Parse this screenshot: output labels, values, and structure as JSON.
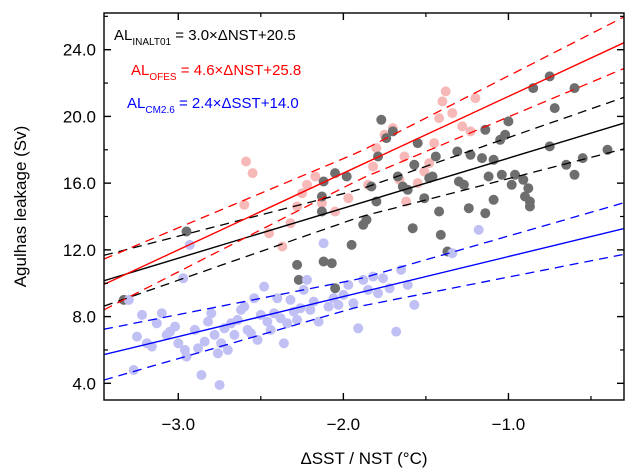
{
  "chart_data": {
    "type": "scatter",
    "xlabel": "ΔSST / NST (°C)",
    "ylabel": "Agulhas leakage (Sv)",
    "xlim": [
      -3.45,
      -0.3
    ],
    "ylim": [
      3.0,
      26.2
    ],
    "x_ticks": [
      -3.0,
      -2.0,
      -1.0
    ],
    "x_tick_labels": [
      "−3.0",
      "−2.0",
      "−1.0"
    ],
    "y_ticks": [
      4.0,
      8.0,
      12.0,
      16.0,
      20.0,
      24.0
    ],
    "y_tick_labels": [
      "4.0",
      "8.0",
      "12.0",
      "16.0",
      "20.0",
      "24.0"
    ],
    "grid": false,
    "legend_position": "top-left",
    "series": [
      {
        "name": "INALT01",
        "color": "#6e6e6e",
        "fit_color": "#000000",
        "equation": {
          "prefix": "AL",
          "subscript": "INALT01",
          "text": " = 3.0×ΔNST+20.5"
        },
        "slope": 3.0,
        "intercept": 20.5,
        "points": [
          [
            -3.33,
            9.0
          ],
          [
            -2.95,
            13.1
          ],
          [
            -2.12,
            16.1
          ],
          [
            -2.05,
            16.6
          ],
          [
            -1.98,
            16.4
          ],
          [
            -2.13,
            14.3
          ],
          [
            -2.13,
            15.2
          ],
          [
            -2.28,
            11.1
          ],
          [
            -2.27,
            10.2
          ],
          [
            -2.12,
            11.3
          ],
          [
            -2.07,
            11.2
          ],
          [
            -2.05,
            9.7
          ],
          [
            -1.95,
            12.3
          ],
          [
            -1.88,
            13.5
          ],
          [
            -1.86,
            13.8
          ],
          [
            -1.8,
            14.9
          ],
          [
            -1.83,
            15.8
          ],
          [
            -1.79,
            17.6
          ],
          [
            -1.77,
            19.8
          ],
          [
            -1.74,
            18.7
          ],
          [
            -1.7,
            19.1
          ],
          [
            -1.67,
            16.4
          ],
          [
            -1.64,
            15.8
          ],
          [
            -1.61,
            15.6
          ],
          [
            -1.58,
            13.3
          ],
          [
            -1.57,
            17.1
          ],
          [
            -1.55,
            18.4
          ],
          [
            -1.51,
            15.1
          ],
          [
            -1.48,
            16.3
          ],
          [
            -1.46,
            16.4
          ],
          [
            -1.44,
            17.6
          ],
          [
            -1.42,
            14.3
          ],
          [
            -1.41,
            12.9
          ],
          [
            -1.37,
            11.9
          ],
          [
            -1.31,
            17.9
          ],
          [
            -1.3,
            16.1
          ],
          [
            -1.27,
            15.9
          ],
          [
            -1.24,
            14.5
          ],
          [
            -1.23,
            17.7
          ],
          [
            -1.16,
            17.5
          ],
          [
            -1.14,
            19.2
          ],
          [
            -1.12,
            16.4
          ],
          [
            -1.09,
            17.4
          ],
          [
            -1.05,
            18.6
          ],
          [
            -1.02,
            18.9
          ],
          [
            -1.0,
            19.7
          ],
          [
            -1.04,
            16.5
          ],
          [
            -1.09,
            15.0
          ],
          [
            -1.14,
            14.2
          ],
          [
            -0.98,
            15.9
          ],
          [
            -0.96,
            16.5
          ],
          [
            -0.91,
            16.2
          ],
          [
            -0.88,
            15.7
          ],
          [
            -0.9,
            15.2
          ],
          [
            -0.87,
            14.9
          ],
          [
            -0.87,
            14.6
          ],
          [
            -0.85,
            21.7
          ],
          [
            -0.75,
            22.4
          ],
          [
            -0.72,
            20.5
          ],
          [
            -0.75,
            18.2
          ],
          [
            -0.65,
            17.1
          ],
          [
            -0.6,
            21.7
          ],
          [
            -0.6,
            16.5
          ],
          [
            -0.55,
            17.5
          ],
          [
            -0.4,
            18.0
          ]
        ]
      },
      {
        "name": "OFES",
        "color": "#f7b8b8",
        "fit_color": "#ff0000",
        "equation": {
          "prefix": "AL",
          "subscript": "OFES",
          "text": " = 4.6×ΔNST+25.8"
        },
        "slope": 4.6,
        "intercept": 25.8,
        "points": [
          [
            -2.59,
            17.3
          ],
          [
            -2.55,
            16.6
          ],
          [
            -2.6,
            14.7
          ],
          [
            -2.45,
            13.0
          ],
          [
            -2.37,
            12.2
          ],
          [
            -2.32,
            13.6
          ],
          [
            -2.25,
            15.4
          ],
          [
            -2.22,
            15.9
          ],
          [
            -2.28,
            14.6
          ],
          [
            -2.17,
            16.4
          ],
          [
            -2.13,
            14.8
          ],
          [
            -2.05,
            14.3
          ],
          [
            -1.97,
            15.1
          ],
          [
            -1.85,
            15.9
          ],
          [
            -1.82,
            17.0
          ],
          [
            -1.8,
            18.1
          ],
          [
            -1.75,
            18.9
          ],
          [
            -1.7,
            19.3
          ],
          [
            -1.66,
            16.2
          ],
          [
            -1.63,
            17.6
          ],
          [
            -1.62,
            14.9
          ],
          [
            -1.55,
            16.0
          ],
          [
            -1.51,
            16.7
          ],
          [
            -1.48,
            17.2
          ],
          [
            -1.45,
            18.4
          ],
          [
            -1.42,
            19.9
          ],
          [
            -1.4,
            20.9
          ],
          [
            -1.38,
            21.5
          ],
          [
            -1.34,
            20.2
          ],
          [
            -1.28,
            19.4
          ],
          [
            -1.23,
            19.1
          ],
          [
            -1.2,
            21.1
          ]
        ]
      },
      {
        "name": "CM2.6",
        "color": "#c0c0f4",
        "fit_color": "#0000ff",
        "equation": {
          "prefix": "AL",
          "subscript": "CM2.6",
          "text": " = 2.4×ΔSST+14.0"
        },
        "slope": 2.4,
        "intercept": 14.0,
        "points": [
          [
            -3.3,
            9.0
          ],
          [
            -3.27,
            4.8
          ],
          [
            -3.25,
            6.8
          ],
          [
            -3.22,
            8.1
          ],
          [
            -3.19,
            6.4
          ],
          [
            -3.16,
            6.2
          ],
          [
            -3.13,
            7.6
          ],
          [
            -3.1,
            8.2
          ],
          [
            -3.07,
            6.9
          ],
          [
            -3.05,
            7.1
          ],
          [
            -3.02,
            7.4
          ],
          [
            -3.0,
            6.4
          ],
          [
            -2.97,
            10.3
          ],
          [
            -2.96,
            6.0
          ],
          [
            -2.95,
            5.6
          ],
          [
            -2.93,
            12.3
          ],
          [
            -2.9,
            7.2
          ],
          [
            -2.88,
            6.1
          ],
          [
            -2.86,
            4.5
          ],
          [
            -2.84,
            6.5
          ],
          [
            -2.82,
            7.7
          ],
          [
            -2.8,
            8.2
          ],
          [
            -2.78,
            6.9
          ],
          [
            -2.76,
            5.8
          ],
          [
            -2.75,
            3.9
          ],
          [
            -2.74,
            6.4
          ],
          [
            -2.72,
            7.3
          ],
          [
            -2.7,
            6.0
          ],
          [
            -2.68,
            7.6
          ],
          [
            -2.66,
            6.9
          ],
          [
            -2.64,
            7.8
          ],
          [
            -2.62,
            8.4
          ],
          [
            -2.6,
            8.6
          ],
          [
            -2.58,
            7.2
          ],
          [
            -2.56,
            7.0
          ],
          [
            -2.54,
            9.1
          ],
          [
            -2.52,
            6.6
          ],
          [
            -2.5,
            8.1
          ],
          [
            -2.48,
            9.8
          ],
          [
            -2.46,
            7.7
          ],
          [
            -2.44,
            7.2
          ],
          [
            -2.42,
            8.2
          ],
          [
            -2.4,
            9.1
          ],
          [
            -2.38,
            7.9
          ],
          [
            -2.36,
            6.4
          ],
          [
            -2.34,
            7.6
          ],
          [
            -2.32,
            9.0
          ],
          [
            -2.3,
            8.3
          ],
          [
            -2.28,
            7.8
          ],
          [
            -2.26,
            8.5
          ],
          [
            -2.24,
            9.6
          ],
          [
            -2.22,
            10.2
          ],
          [
            -2.2,
            8.4
          ],
          [
            -2.18,
            8.9
          ],
          [
            -2.15,
            7.7
          ],
          [
            -2.12,
            12.4
          ],
          [
            -2.09,
            8.6
          ],
          [
            -2.06,
            9.1
          ],
          [
            -2.03,
            8.7
          ],
          [
            -2.0,
            9.3
          ],
          [
            -1.97,
            9.9
          ],
          [
            -1.94,
            8.8
          ],
          [
            -1.91,
            7.3
          ],
          [
            -1.88,
            10.2
          ],
          [
            -1.85,
            9.6
          ],
          [
            -1.82,
            10.4
          ],
          [
            -1.79,
            9.4
          ],
          [
            -1.76,
            10.3
          ],
          [
            -1.72,
            9.7
          ],
          [
            -1.68,
            7.1
          ],
          [
            -1.65,
            10.8
          ],
          [
            -1.61,
            9.9
          ],
          [
            -1.57,
            8.7
          ],
          [
            -1.34,
            11.8
          ],
          [
            -1.18,
            13.2
          ]
        ]
      }
    ],
    "fit_line_band_offset": 1.5
  }
}
